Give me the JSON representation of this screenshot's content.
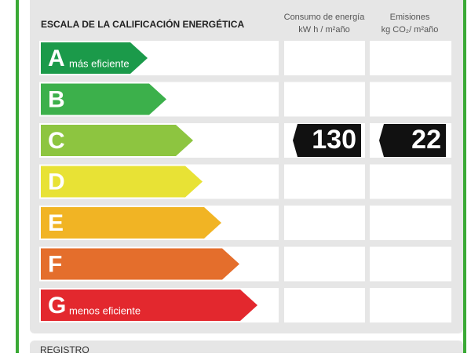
{
  "header": {
    "title": "ESCALA DE LA CALIFICACIÓN ENERGÉTICA",
    "columns": [
      {
        "title": "Consumo de energía",
        "unit": "kW h / m²año"
      },
      {
        "title": "Emisiones",
        "unit": "kg CO₂/ m²año"
      }
    ]
  },
  "scale": [
    {
      "letter": "A",
      "note": "más eficiente",
      "color": "#1b9a4a"
    },
    {
      "letter": "B",
      "color": "#3cb04b"
    },
    {
      "letter": "C",
      "color": "#8dc540",
      "consumption": 130,
      "emissions": 22
    },
    {
      "letter": "D",
      "color": "#e8e235"
    },
    {
      "letter": "E",
      "color": "#f1b424"
    },
    {
      "letter": "F",
      "color": "#e46e2c"
    },
    {
      "letter": "G",
      "note": "menos eficiente",
      "color": "#e3282e"
    }
  ],
  "footer": {
    "title": "REGISTRO"
  }
}
